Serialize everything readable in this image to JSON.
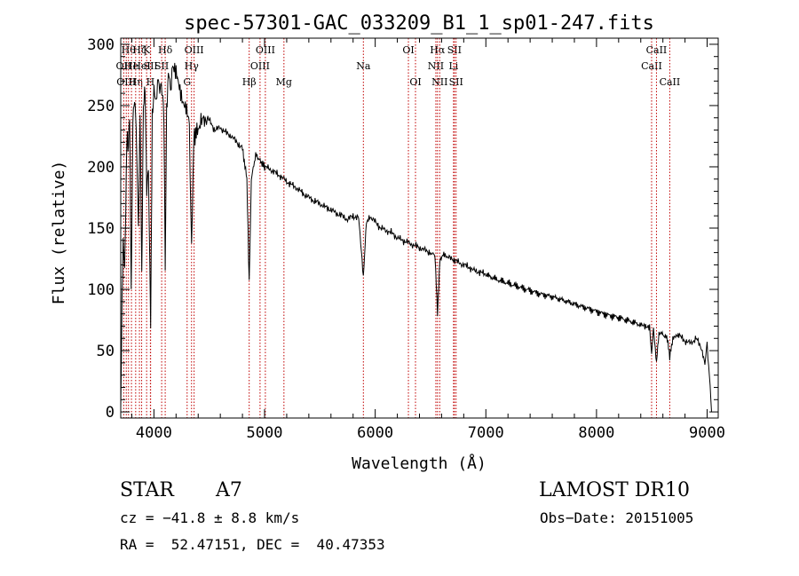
{
  "chart_data": {
    "type": "line",
    "title": "spec-57301-GAC_033209_B1_1_sp01-247.fits",
    "xlabel": "Wavelength (Å)",
    "ylabel": "Flux (relative)",
    "xlim": [
      3700,
      9100
    ],
    "ylim": [
      -5,
      305
    ],
    "xticks": [
      4000,
      5000,
      6000,
      7000,
      8000,
      9000
    ],
    "yticks": [
      0,
      50,
      100,
      150,
      200,
      250,
      300
    ],
    "grid": false,
    "series": [
      {
        "points": [
          [
            3700,
            0
          ],
          [
            3712,
            90
          ],
          [
            3722,
            140
          ],
          [
            3735,
            120
          ],
          [
            3745,
            160
          ],
          [
            3755,
            225
          ],
          [
            3770,
            215
          ],
          [
            3780,
            245
          ],
          [
            3795,
            100
          ],
          [
            3810,
            240
          ],
          [
            3825,
            255
          ],
          [
            3840,
            235
          ],
          [
            3860,
            150
          ],
          [
            3875,
            245
          ],
          [
            3890,
            110
          ],
          [
            3905,
            250
          ],
          [
            3920,
            265
          ],
          [
            3935,
            180
          ],
          [
            3950,
            200
          ],
          [
            3970,
            70
          ],
          [
            3985,
            240
          ],
          [
            4000,
            262
          ],
          [
            4020,
            255
          ],
          [
            4040,
            270
          ],
          [
            4060,
            265
          ],
          [
            4080,
            258
          ],
          [
            4090,
            240
          ],
          [
            4102,
            120
          ],
          [
            4115,
            245
          ],
          [
            4130,
            275
          ],
          [
            4150,
            265
          ],
          [
            4170,
            280
          ],
          [
            4200,
            275
          ],
          [
            4230,
            265
          ],
          [
            4260,
            255
          ],
          [
            4290,
            250
          ],
          [
            4320,
            235
          ],
          [
            4340,
            130
          ],
          [
            4360,
            225
          ],
          [
            4400,
            230
          ],
          [
            4450,
            240
          ],
          [
            4500,
            238
          ],
          [
            4550,
            230
          ],
          [
            4600,
            232
          ],
          [
            4650,
            228
          ],
          [
            4700,
            225
          ],
          [
            4750,
            220
          ],
          [
            4800,
            215
          ],
          [
            4840,
            190
          ],
          [
            4861,
            105
          ],
          [
            4880,
            190
          ],
          [
            4920,
            210
          ],
          [
            4960,
            205
          ],
          [
            5000,
            200
          ],
          [
            5050,
            198
          ],
          [
            5100,
            195
          ],
          [
            5150,
            192
          ],
          [
            5200,
            188
          ],
          [
            5250,
            185
          ],
          [
            5300,
            182
          ],
          [
            5350,
            178
          ],
          [
            5400,
            175
          ],
          [
            5450,
            172
          ],
          [
            5500,
            170
          ],
          [
            5550,
            167
          ],
          [
            5600,
            165
          ],
          [
            5650,
            162
          ],
          [
            5700,
            160
          ],
          [
            5750,
            157
          ],
          [
            5800,
            160
          ],
          [
            5850,
            158
          ],
          [
            5893,
            110
          ],
          [
            5920,
            155
          ],
          [
            5950,
            160
          ],
          [
            6000,
            155
          ],
          [
            6050,
            150
          ],
          [
            6100,
            148
          ],
          [
            6150,
            146
          ],
          [
            6200,
            142
          ],
          [
            6250,
            140
          ],
          [
            6300,
            138
          ],
          [
            6350,
            136
          ],
          [
            6400,
            134
          ],
          [
            6450,
            132
          ],
          [
            6500,
            130
          ],
          [
            6540,
            128
          ],
          [
            6563,
            80
          ],
          [
            6585,
            125
          ],
          [
            6620,
            128
          ],
          [
            6650,
            126
          ],
          [
            6700,
            125
          ],
          [
            6750,
            122
          ],
          [
            6800,
            120
          ],
          [
            6850,
            118
          ],
          [
            6900,
            115
          ],
          [
            6950,
            114
          ],
          [
            7000,
            112
          ],
          [
            7100,
            108
          ],
          [
            7200,
            105
          ],
          [
            7300,
            102
          ],
          [
            7400,
            99
          ],
          [
            7500,
            96
          ],
          [
            7600,
            94
          ],
          [
            7700,
            91
          ],
          [
            7800,
            88
          ],
          [
            7900,
            85
          ],
          [
            8000,
            82
          ],
          [
            8100,
            79
          ],
          [
            8200,
            77
          ],
          [
            8300,
            74
          ],
          [
            8400,
            71
          ],
          [
            8480,
            70
          ],
          [
            8498,
            48
          ],
          [
            8515,
            68
          ],
          [
            8542,
            40
          ],
          [
            8565,
            65
          ],
          [
            8600,
            63
          ],
          [
            8640,
            60
          ],
          [
            8662,
            45
          ],
          [
            8690,
            60
          ],
          [
            8750,
            62
          ],
          [
            8800,
            58
          ],
          [
            8850,
            56
          ],
          [
            8900,
            60
          ],
          [
            8950,
            52
          ],
          [
            8980,
            40
          ],
          [
            9000,
            55
          ],
          [
            9020,
            30
          ],
          [
            9040,
            0
          ]
        ]
      }
    ],
    "line_marks": [
      {
        "wavelength": 3727,
        "label": "OII",
        "row": 1
      },
      {
        "wavelength": 3750,
        "label": "OIII",
        "row": 2
      },
      {
        "wavelength": 3770,
        "label": "Hθ",
        "row": 0
      },
      {
        "wavelength": 3797,
        "label": "He",
        "row": 1
      },
      {
        "wavelength": 3835,
        "label": "Hη",
        "row": 2
      },
      {
        "wavelength": 3869,
        "label": "Hζ",
        "row": 0
      },
      {
        "wavelength": 3889,
        "label": "HeI",
        "row": 1
      },
      {
        "wavelength": 3934,
        "label": "K",
        "row": 0
      },
      {
        "wavelength": 3968,
        "label": "H",
        "row": 2
      },
      {
        "wavelength": 3970,
        "label": "SII",
        "row": 1
      },
      {
        "wavelength": 4070,
        "label": "SII",
        "row": 1
      },
      {
        "wavelength": 4102,
        "label": "Hδ",
        "row": 0
      },
      {
        "wavelength": 4300,
        "label": "G",
        "row": 2
      },
      {
        "wavelength": 4340,
        "label": "Hγ",
        "row": 1
      },
      {
        "wavelength": 4363,
        "label": "OIII",
        "row": 0
      },
      {
        "wavelength": 4861,
        "label": "Hβ",
        "row": 2
      },
      {
        "wavelength": 4959,
        "label": "OIII",
        "row": 1
      },
      {
        "wavelength": 5007,
        "label": "OIII",
        "row": 0
      },
      {
        "wavelength": 5175,
        "label": "Mg",
        "row": 2
      },
      {
        "wavelength": 5893,
        "label": "Na",
        "row": 1
      },
      {
        "wavelength": 6300,
        "label": "OI",
        "row": 0
      },
      {
        "wavelength": 6364,
        "label": "OI",
        "row": 2
      },
      {
        "wavelength": 6548,
        "label": "NII",
        "row": 1
      },
      {
        "wavelength": 6563,
        "label": "Hα",
        "row": 0
      },
      {
        "wavelength": 6583,
        "label": "NII",
        "row": 2
      },
      {
        "wavelength": 6708,
        "label": "Li",
        "row": 1
      },
      {
        "wavelength": 6716,
        "label": "SII",
        "row": 0
      },
      {
        "wavelength": 6731,
        "label": "SII",
        "row": 2
      },
      {
        "wavelength": 8498,
        "label": "CaII",
        "row": 1
      },
      {
        "wavelength": 8542,
        "label": "CaII",
        "row": 0
      },
      {
        "wavelength": 8662,
        "label": "CaII",
        "row": 2
      }
    ]
  },
  "info": {
    "object_class": "STAR",
    "subclass": "A7",
    "survey": "LAMOST DR10",
    "cz": "cz = −41.8 ± 8.8 km/s",
    "obs_date": "Obs−Date: 20151005",
    "coords": "RA =  52.47151, DEC =  40.47353"
  },
  "colors": {
    "line_mark": "#c00000",
    "spectrum": "#000000",
    "axis": "#000000",
    "background": "#ffffff"
  }
}
